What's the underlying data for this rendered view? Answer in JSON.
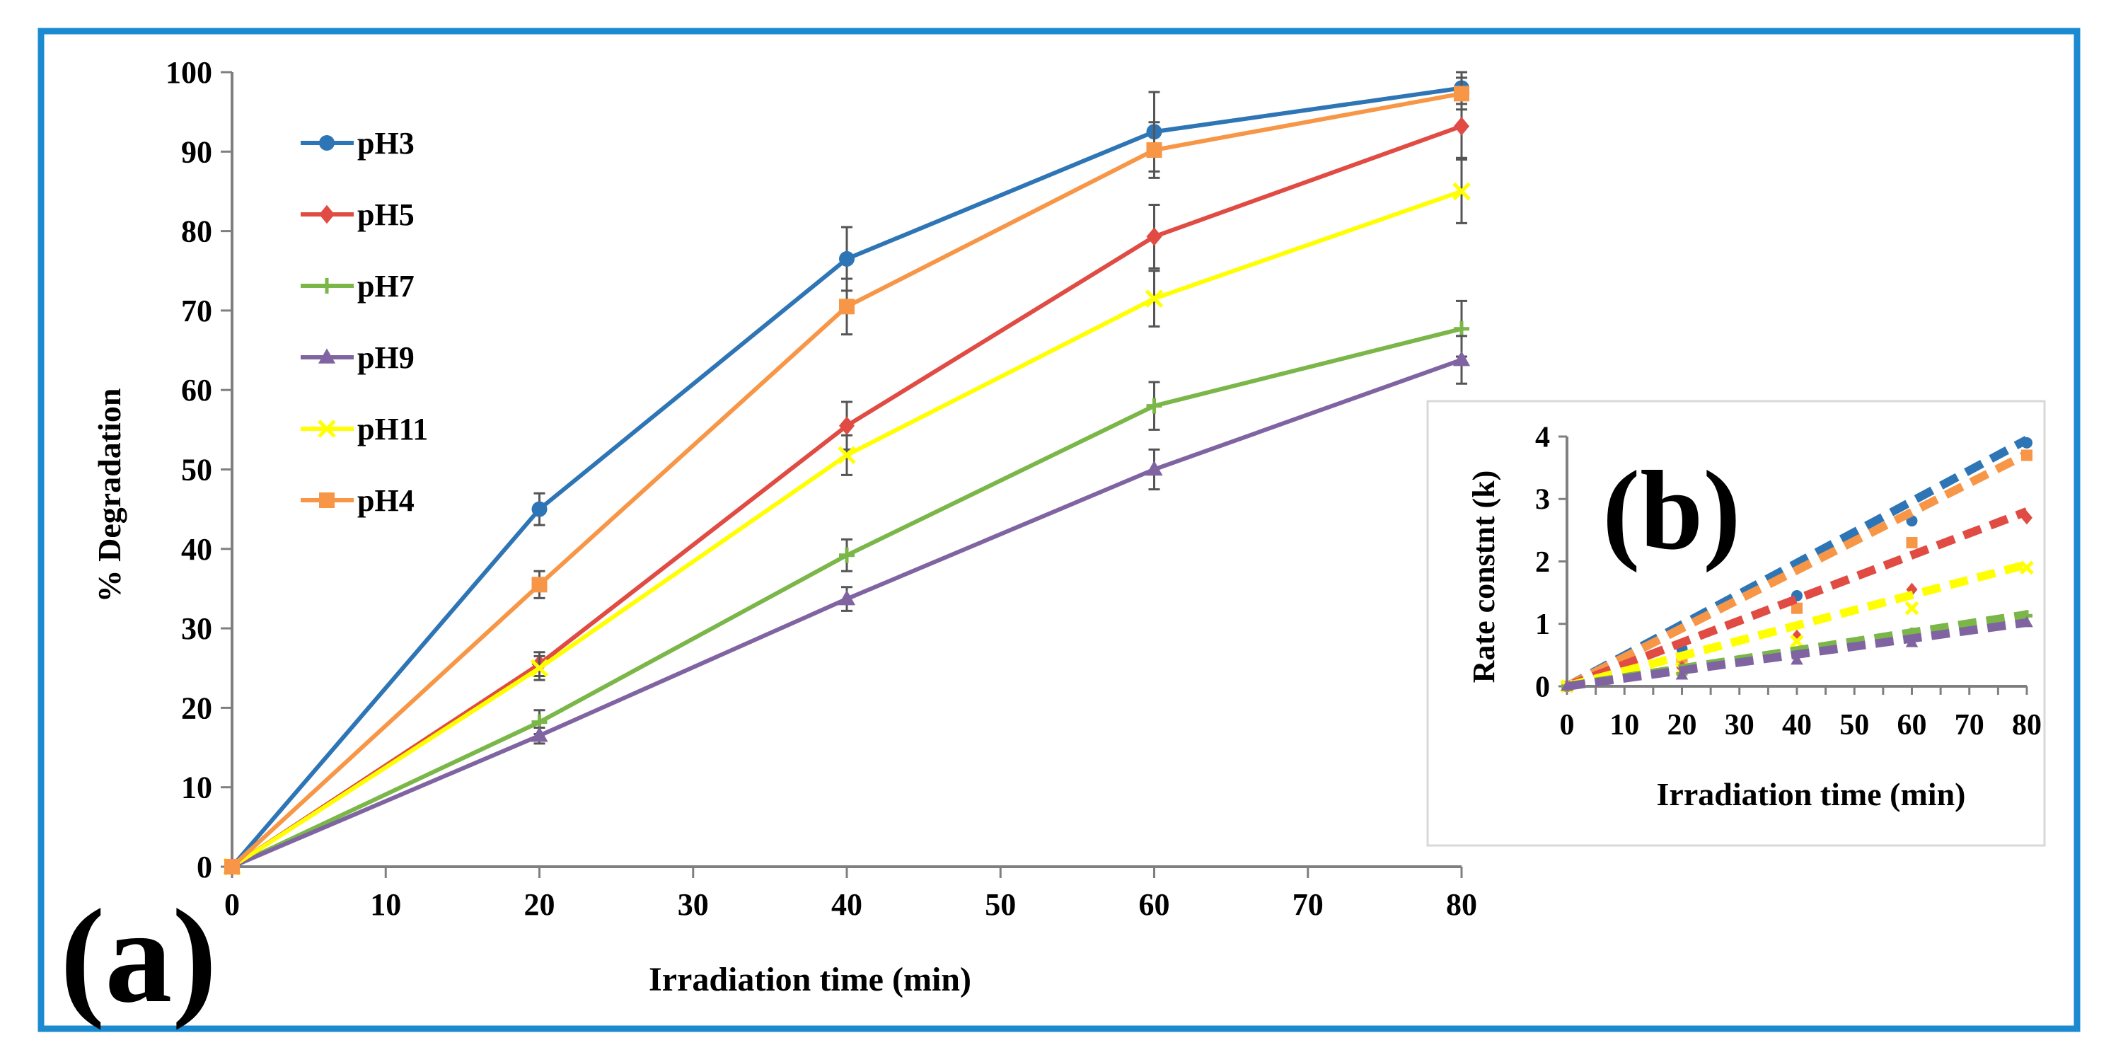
{
  "colors": {
    "frame": "#1b8ad0",
    "axis": "#7f7f7f",
    "text": "#000000",
    "inset_border": "#d9d9d9"
  },
  "chart_data": [
    {
      "panel_label": "(a)",
      "type": "line",
      "title": "",
      "xlabel": "Irradiation time (min)",
      "ylabel": "% Degradation",
      "xlim": [
        0,
        80
      ],
      "ylim": [
        0,
        100
      ],
      "x_ticks": [
        0,
        10,
        20,
        30,
        40,
        50,
        60,
        70,
        80
      ],
      "y_ticks": [
        0,
        10,
        20,
        30,
        40,
        50,
        60,
        70,
        80,
        90,
        100
      ],
      "x_tick_labels": [
        "0",
        "10",
        "20",
        "30",
        "40",
        "50",
        "60",
        "70",
        "80"
      ],
      "y_tick_labels": [
        "0",
        "10",
        "20",
        "30",
        "40",
        "50",
        "60",
        "70",
        "80",
        "90",
        "100"
      ],
      "grid": false,
      "legend_position": "top-left",
      "x": [
        0,
        20,
        40,
        60,
        80
      ],
      "series": [
        {
          "name": "pH3",
          "color": "#2e75b6",
          "marker": "circle",
          "values": [
            0,
            45,
            76.5,
            92.5,
            98
          ],
          "errors": [
            0,
            2,
            4,
            5,
            2
          ]
        },
        {
          "name": "pH5",
          "color": "#e04b43",
          "marker": "diamond",
          "values": [
            0,
            25.5,
            55.5,
            79.3,
            93.2
          ],
          "errors": [
            0,
            1.5,
            3,
            4,
            4
          ]
        },
        {
          "name": "pH7",
          "color": "#7ab648",
          "marker": "plus",
          "values": [
            0,
            18.2,
            39.2,
            58,
            67.7
          ],
          "errors": [
            0,
            1.5,
            2,
            3,
            3.5
          ]
        },
        {
          "name": "pH9",
          "color": "#8064a2",
          "marker": "triangle",
          "values": [
            0,
            16.5,
            33.7,
            50,
            63.8
          ],
          "errors": [
            0,
            1,
            1.5,
            2.5,
            3
          ]
        },
        {
          "name": "pH11",
          "color": "#ffff00",
          "marker": "x",
          "values": [
            0,
            25,
            51.8,
            71.5,
            85
          ],
          "errors": [
            0,
            1.5,
            2.5,
            3.5,
            4
          ]
        },
        {
          "name": "pH4",
          "color": "#f79646",
          "marker": "square",
          "values": [
            0,
            35.5,
            70.5,
            90.2,
            97.3
          ],
          "errors": [
            0,
            1.7,
            3.5,
            3.5,
            2
          ]
        }
      ]
    },
    {
      "panel_label": "(b)",
      "type": "scatter",
      "title": "",
      "xlabel": "Irradiation time (min)",
      "ylabel": "Rate constnt (k)",
      "xlim": [
        0,
        80
      ],
      "ylim": [
        0,
        4
      ],
      "x_ticks": [
        0,
        10,
        20,
        30,
        40,
        50,
        60,
        70,
        80
      ],
      "y_ticks": [
        0,
        1,
        2,
        3,
        4
      ],
      "x_tick_labels": [
        "0",
        "10",
        "20",
        "30",
        "40",
        "50",
        "60",
        "70",
        "80"
      ],
      "y_tick_labels": [
        "0",
        "1",
        "2",
        "3",
        "4"
      ],
      "grid": false,
      "x": [
        0,
        20,
        40,
        60,
        80
      ],
      "series": [
        {
          "name": "pH3",
          "color": "#2e75b6",
          "marker": "circle",
          "values": [
            0,
            0.6,
            1.45,
            2.65,
            3.9
          ],
          "trend": [
            0,
            3.95
          ]
        },
        {
          "name": "pH4",
          "color": "#f79646",
          "marker": "square",
          "values": [
            0,
            0.45,
            1.25,
            2.3,
            3.7
          ],
          "trend": [
            0,
            3.72
          ]
        },
        {
          "name": "pH5",
          "color": "#e04b43",
          "marker": "diamond",
          "values": [
            0,
            0.3,
            0.8,
            1.55,
            2.7
          ],
          "trend": [
            0,
            2.8
          ]
        },
        {
          "name": "pH11",
          "color": "#ffff00",
          "marker": "x",
          "values": [
            0,
            0.28,
            0.72,
            1.25,
            1.9
          ],
          "trend": [
            0,
            1.95
          ]
        },
        {
          "name": "pH7",
          "color": "#7ab648",
          "marker": "plus",
          "values": [
            0,
            0.2,
            0.5,
            0.85,
            1.13
          ],
          "trend": [
            0,
            1.15
          ]
        },
        {
          "name": "pH9",
          "color": "#8064a2",
          "marker": "triangle",
          "values": [
            0,
            0.18,
            0.42,
            0.7,
            1.02
          ],
          "trend": [
            0,
            1.02
          ]
        }
      ]
    }
  ]
}
